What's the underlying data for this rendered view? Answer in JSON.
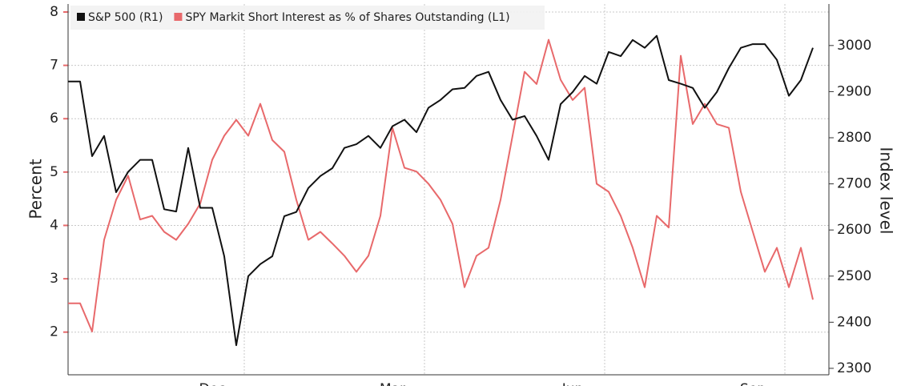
{
  "chart_data": {
    "type": "line",
    "categories": [
      null,
      null,
      null,
      null,
      null,
      null,
      null,
      null,
      null,
      null,
      null,
      null,
      "Dec",
      null,
      null,
      null,
      null,
      null,
      null,
      null,
      null,
      null,
      null,
      null,
      null,
      null,
      null,
      "Mar",
      null,
      null,
      null,
      null,
      null,
      null,
      null,
      null,
      null,
      null,
      null,
      null,
      null,
      null,
      "Jun",
      null,
      null,
      null,
      null,
      null,
      null,
      null,
      null,
      null,
      null,
      null,
      null,
      null,
      null,
      "Sep",
      null,
      null,
      null,
      null,
      null
    ],
    "series": [
      {
        "name": "S&P 500 (R1)",
        "color": "#111111",
        "axis": "y2",
        "values": [
          2922,
          2922,
          2760,
          2804,
          2682,
          2726,
          2752,
          2752,
          2645,
          2640,
          2778,
          2648,
          2648,
          2543,
          2350,
          2500,
          2526,
          2543,
          2630,
          2639,
          2691,
          2717,
          2734,
          2778,
          2786,
          2804,
          2778,
          2825,
          2839,
          2812,
          2865,
          2882,
          2905,
          2908,
          2934,
          2943,
          2882,
          2839,
          2847,
          2804,
          2752,
          2873,
          2899,
          2934,
          2917,
          2986,
          2977,
          3012,
          2995,
          3021,
          2925,
          2917,
          2908,
          2865,
          2899,
          2951,
          2995,
          3003,
          3003,
          2969,
          2891,
          2925,
          2995
        ]
      },
      {
        "name": "SPY Markit Short Interest as % of Shares Outstanding (L1)",
        "color": "#e8696b",
        "values": [
          2.54,
          2.54,
          2.01,
          3.73,
          4.48,
          4.93,
          4.11,
          4.18,
          3.88,
          3.73,
          4.03,
          4.41,
          5.23,
          5.68,
          5.98,
          5.68,
          6.28,
          5.6,
          5.38,
          4.48,
          3.73,
          3.88,
          3.66,
          3.43,
          3.13,
          3.43,
          4.18,
          5.83,
          5.08,
          5.01,
          4.78,
          4.48,
          4.03,
          2.84,
          3.43,
          3.58,
          4.48,
          5.68,
          6.88,
          6.65,
          7.48,
          6.73,
          6.35,
          6.58,
          4.78,
          4.63,
          4.18,
          3.58,
          2.84,
          4.18,
          3.96,
          7.18,
          5.9,
          6.28,
          5.9,
          5.83,
          4.63,
          3.88,
          3.13,
          3.58,
          2.84,
          3.58,
          2.61
        ]
      }
    ],
    "ylabel": "Percent",
    "y2label": "Index level",
    "ylim": [
      1.2,
      8.15
    ],
    "yticks": [
      2,
      3,
      4,
      5,
      6,
      7,
      8
    ],
    "y2lim": [
      2286,
      3090
    ],
    "y2ticks": [
      2300,
      2400,
      2500,
      2600,
      2700,
      2800,
      2900,
      3000
    ],
    "grid": true
  }
}
